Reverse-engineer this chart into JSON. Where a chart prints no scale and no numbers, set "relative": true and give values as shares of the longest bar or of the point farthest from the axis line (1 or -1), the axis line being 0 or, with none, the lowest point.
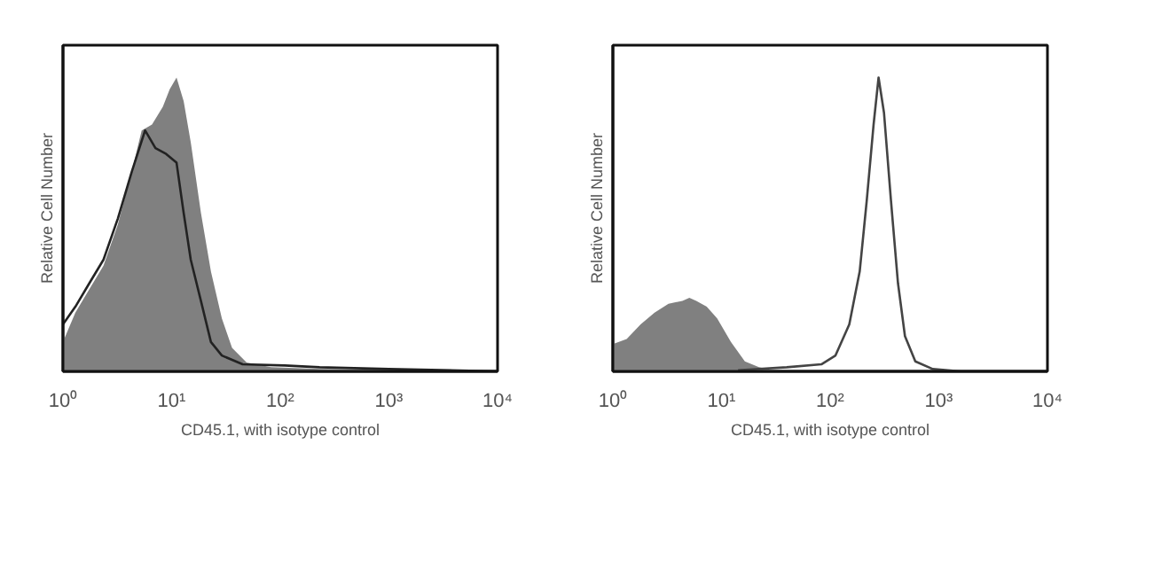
{
  "chart_data": [
    {
      "type": "area",
      "relative": true,
      "log": "x",
      "xlabel": "CD45.1, with isotype control",
      "ylabel": "Relative Cell Number",
      "xlim": [
        1,
        10000
      ],
      "xticks": [
        {
          "value": 1,
          "label": "10⁰"
        },
        {
          "value": 10,
          "label": "10¹"
        },
        {
          "value": 100,
          "label": "10²"
        },
        {
          "value": 1000,
          "label": "10³"
        },
        {
          "value": 10000,
          "label": "10⁴"
        }
      ],
      "tick_labels": "x",
      "grid": false,
      "series": [
        {
          "color": "#808080",
          "x": [
            1,
            1.3,
            1.75,
            2.36,
            3.2,
            4.3,
            5.3,
            6.6,
            8.3,
            9.6,
            11.1,
            12.9,
            15,
            18.6,
            23,
            29,
            36,
            49,
            82,
            230,
            10000
          ],
          "values": [
            0.1,
            0.2,
            0.28,
            0.36,
            0.5,
            0.68,
            0.82,
            0.84,
            0.9,
            0.96,
            1.0,
            0.92,
            0.78,
            0.54,
            0.34,
            0.18,
            0.08,
            0.03,
            0.014,
            0.008,
            0
          ]
        },
        {
          "type": "line",
          "color": "#222222",
          "x": [
            1,
            1.3,
            1.75,
            2.36,
            3.2,
            4.3,
            5.7,
            7.1,
            8.9,
            11.1,
            12.9,
            15,
            18.6,
            23,
            29,
            45,
            110,
            230,
            1000,
            10000
          ],
          "values": [
            0.16,
            0.22,
            0.3,
            0.38,
            0.52,
            0.68,
            0.82,
            0.76,
            0.74,
            0.71,
            0.54,
            0.38,
            0.24,
            0.1,
            0.054,
            0.024,
            0.02,
            0.014,
            0.008,
            0
          ]
        }
      ]
    },
    {
      "type": "area",
      "relative": true,
      "log": "x",
      "xlabel": "CD45.1, with isotype control",
      "ylabel": "Relative Cell Number",
      "xlim": [
        1,
        10000
      ],
      "xticks": [
        {
          "value": 1,
          "label": "10⁰"
        },
        {
          "value": 10,
          "label": "10¹"
        },
        {
          "value": 100,
          "label": "10²"
        },
        {
          "value": 1000,
          "label": "10³"
        },
        {
          "value": 10000,
          "label": "10⁴"
        }
      ],
      "tick_labels": "x",
      "grid": false,
      "series": [
        {
          "color": "#808080",
          "x": [
            1,
            1.34,
            1.8,
            2.42,
            3.25,
            4.37,
            5.06,
            5.86,
            7.31,
            9.12,
            12.2,
            16.4,
            22.1,
            29.6,
            100,
            10000
          ],
          "values": [
            0.093,
            0.11,
            0.16,
            0.2,
            0.23,
            0.24,
            0.25,
            0.24,
            0.22,
            0.18,
            0.1,
            0.034,
            0.014,
            0.004,
            0,
            0
          ]
        },
        {
          "type": "line",
          "color": "#444444",
          "x": [
            14.2,
            39.8,
            83,
            112,
            150,
            187,
            217,
            251,
            279,
            313,
            363,
            421,
            488,
            608,
            879,
            1585,
            10000
          ],
          "values": [
            0.004,
            0.014,
            0.024,
            0.054,
            0.16,
            0.34,
            0.58,
            0.84,
            1.0,
            0.88,
            0.58,
            0.3,
            0.12,
            0.034,
            0.008,
            0,
            0
          ]
        }
      ]
    }
  ]
}
